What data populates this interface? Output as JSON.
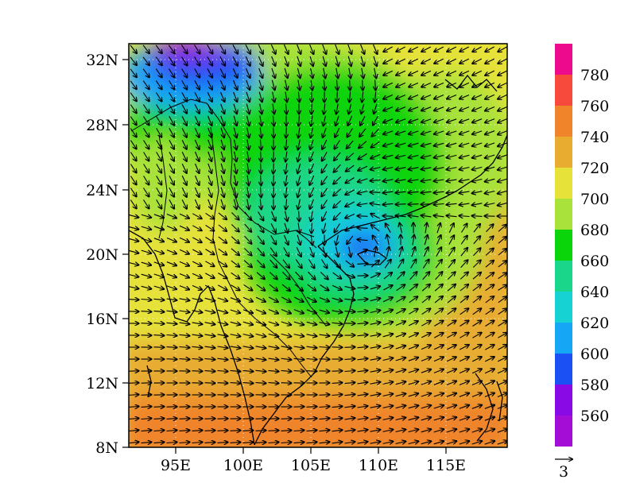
{
  "map": {
    "lat_labels": [
      "32N",
      "28N",
      "24N",
      "20N",
      "16N",
      "12N",
      "8N"
    ],
    "lon_labels": [
      "95E",
      "100E",
      "105E",
      "110E",
      "115E"
    ],
    "lat_values": [
      32,
      28,
      24,
      20,
      16,
      12,
      8
    ],
    "lon_values": [
      95,
      100,
      105,
      110,
      115
    ],
    "lon_range": [
      91.5,
      119.5
    ],
    "lat_range": [
      8,
      33
    ],
    "dotted_grid": true
  },
  "colorbar": {
    "labels": [
      "780",
      "760",
      "740",
      "720",
      "700",
      "680",
      "660",
      "640",
      "620",
      "600",
      "580",
      "560"
    ],
    "colors_top_to_bottom": [
      "#ee0a8c",
      "#f84a3c",
      "#f0842a",
      "#e8ac30",
      "#e6e23a",
      "#a8e23a",
      "#0ad40a",
      "#1ad68a",
      "#16d2d2",
      "#16a6f6",
      "#1a50f4",
      "#8a0ae6",
      "#a30dd6"
    ]
  },
  "vector_reference": {
    "label": "3"
  },
  "colors": {
    "arrow": "#000000",
    "coast": "#000000"
  }
}
